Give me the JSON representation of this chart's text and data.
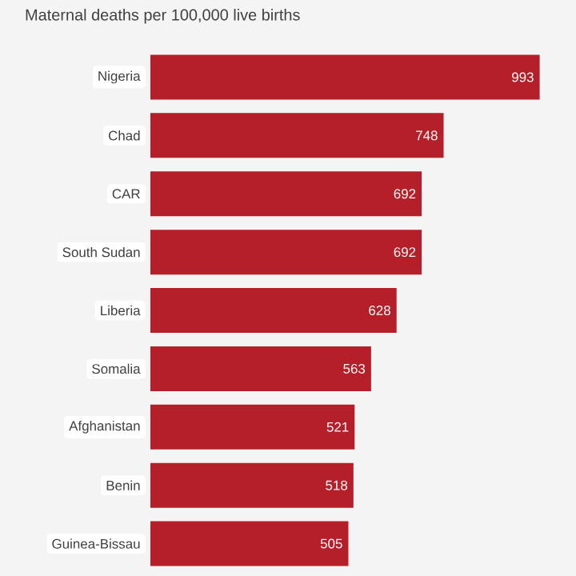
{
  "chart_data": {
    "type": "bar",
    "orientation": "horizontal",
    "title": "Maternal deaths per 100,000 live births",
    "categories": [
      "Nigeria",
      "Chad",
      "CAR",
      "South Sudan",
      "Liberia",
      "Somalia",
      "Afghanistan",
      "Benin",
      "Guinea-Bissau"
    ],
    "values": [
      993,
      748,
      692,
      692,
      628,
      563,
      521,
      518,
      505
    ],
    "color": "#b41f2a",
    "xlim": [
      0,
      1000
    ],
    "data_labels": true,
    "tick_labels": "y"
  }
}
